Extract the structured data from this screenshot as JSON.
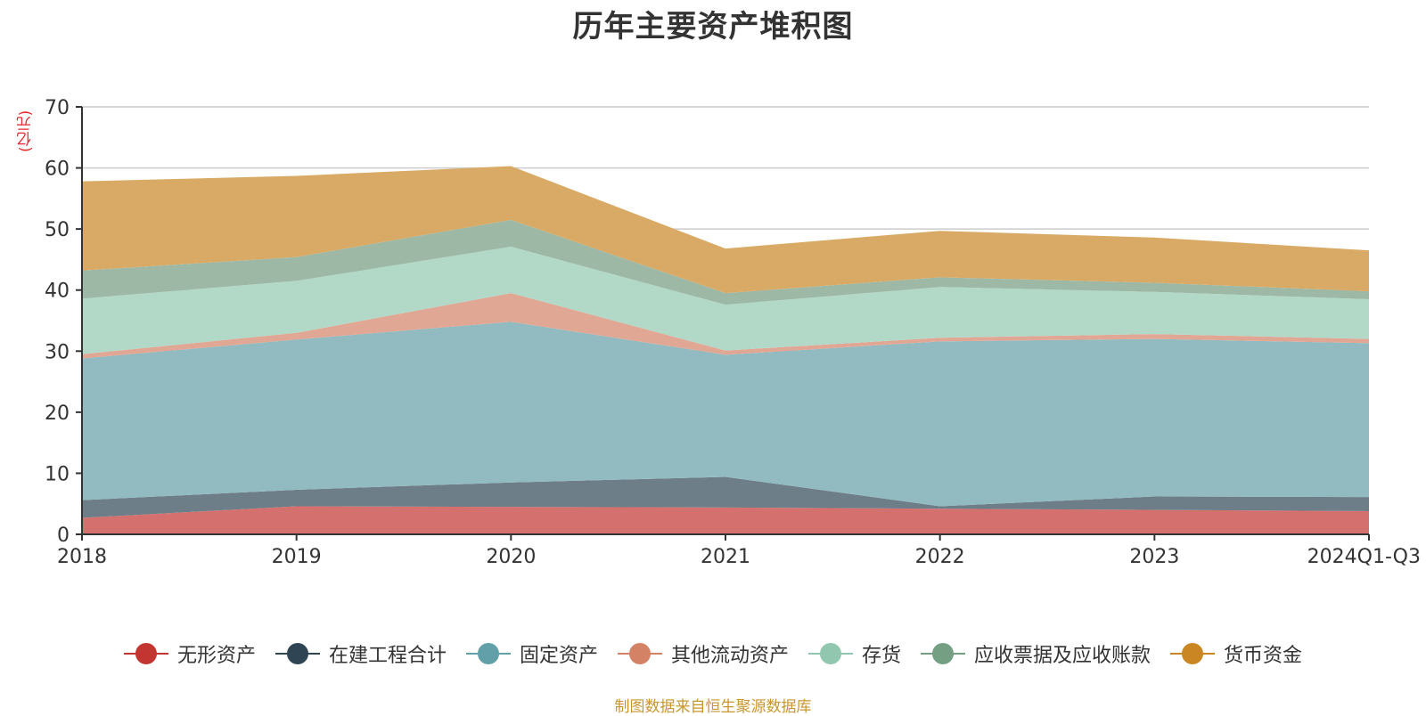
{
  "chart_data": {
    "type": "area",
    "stacked": true,
    "title": "历年主要资产堆积图",
    "unit_label": "(亿元)",
    "categories": [
      "2018",
      "2019",
      "2020",
      "2021",
      "2022",
      "2023",
      "2024Q1-Q3"
    ],
    "ylim": [
      0,
      70
    ],
    "yticks": [
      0,
      10,
      20,
      30,
      40,
      50,
      60,
      70
    ],
    "grid": true,
    "legend_position": "bottom",
    "series": [
      {
        "name": "无形资产",
        "color": "#c23531",
        "fill": "#d4706e",
        "values": [
          2.7,
          4.6,
          4.5,
          4.4,
          4.2,
          4.0,
          3.8
        ]
      },
      {
        "name": "在建工程合计",
        "color": "#2f4554",
        "fill": "#6e7e88",
        "values": [
          2.9,
          2.7,
          4.0,
          5.0,
          0.4,
          2.2,
          2.3
        ]
      },
      {
        "name": "固定资产",
        "color": "#61a0a8",
        "fill": "#91bbc1",
        "values": [
          23.2,
          24.6,
          26.3,
          20.0,
          27.0,
          25.8,
          25.2
        ]
      },
      {
        "name": "其他流动资产",
        "color": "#d48265",
        "fill": "#e1a795",
        "values": [
          0.7,
          1.1,
          4.7,
          0.7,
          0.6,
          0.8,
          0.7
        ]
      },
      {
        "name": "存货",
        "color": "#91c7ae",
        "fill": "#b2d9c7",
        "values": [
          9.1,
          8.5,
          7.6,
          7.5,
          8.3,
          6.9,
          6.5
        ]
      },
      {
        "name": "应收票据及应收账款",
        "color": "#749f83",
        "fill": "#9eb8a6",
        "values": [
          4.6,
          3.9,
          4.4,
          1.9,
          1.6,
          1.5,
          1.3
        ]
      },
      {
        "name": "货币资金",
        "color": "#ca8622",
        "fill": "#d9aa65",
        "values": [
          14.6,
          13.3,
          8.8,
          7.3,
          7.6,
          7.4,
          6.7
        ]
      }
    ],
    "source_note": "制图数据来自恒生聚源数据库"
  }
}
